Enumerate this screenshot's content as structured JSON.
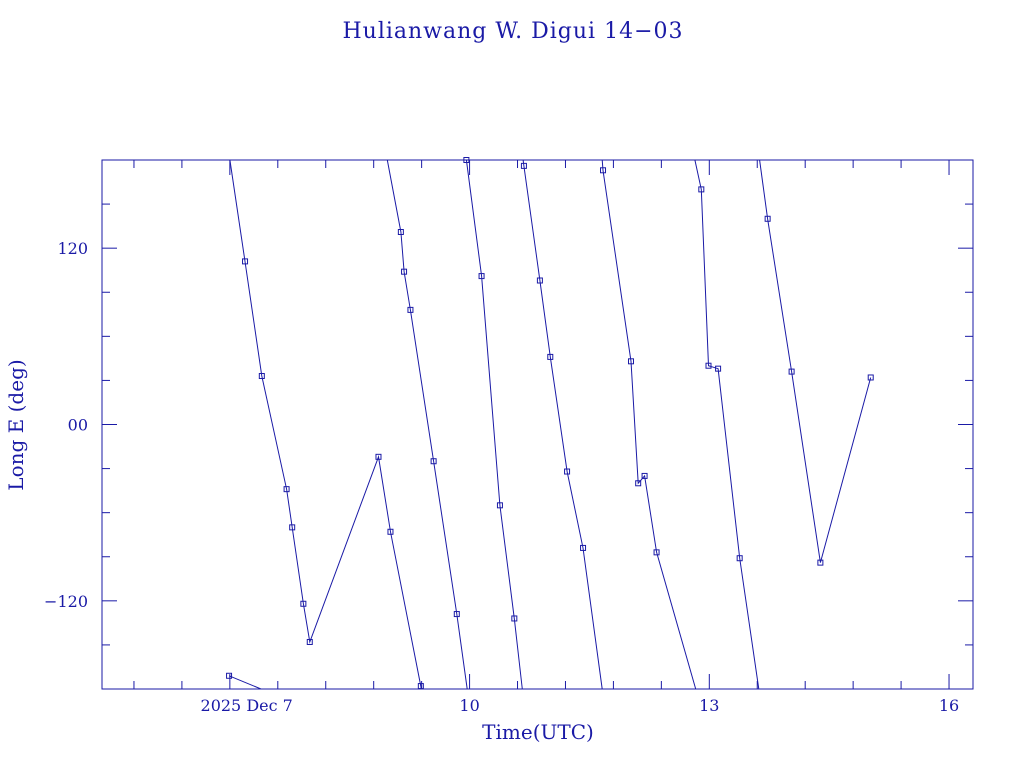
{
  "chart_data": {
    "type": "line",
    "title": "Hulianwang W. Digui 14−03",
    "xlabel": "Time(UTC)",
    "ylabel": "Long E (deg)",
    "xlim": [
      5.4,
      16.3
    ],
    "ylim": [
      -180,
      180
    ],
    "x_ticks": [
      {
        "value": 7,
        "label": "2025 Dec  7"
      },
      {
        "value": 10,
        "label": "10"
      },
      {
        "value": 13,
        "label": "13"
      },
      {
        "value": 16,
        "label": "16"
      }
    ],
    "x_minor_step": 0.6,
    "y_ticks": [
      {
        "value": 120,
        "label": "120"
      },
      {
        "value": 0,
        "label": "00"
      },
      {
        "value": -120,
        "label": "−120"
      }
    ],
    "y_minor_step": 30,
    "grid": false,
    "color": "#1a1aa6",
    "series": [
      {
        "points": [
          {
            "x": 6.99,
            "y": -171
          },
          {
            "x": 7.39,
            "y": -180,
            "marker": false
          }
        ]
      },
      {
        "points": [
          {
            "x": 7.0,
            "y": 180,
            "marker": false
          },
          {
            "x": 7.19,
            "y": 111
          },
          {
            "x": 7.4,
            "y": 33
          },
          {
            "x": 7.71,
            "y": -44
          },
          {
            "x": 7.78,
            "y": -70
          },
          {
            "x": 7.92,
            "y": -122
          },
          {
            "x": 8.0,
            "y": -148
          },
          {
            "x": 8.86,
            "y": -22
          },
          {
            "x": 9.01,
            "y": -73
          },
          {
            "x": 9.39,
            "y": -178
          },
          {
            "x": 9.395,
            "y": -180,
            "marker": false
          }
        ]
      },
      {
        "points": [
          {
            "x": 8.97,
            "y": 180,
            "marker": false
          },
          {
            "x": 9.14,
            "y": 131
          },
          {
            "x": 9.18,
            "y": 104
          },
          {
            "x": 9.26,
            "y": 78
          },
          {
            "x": 9.55,
            "y": -25
          },
          {
            "x": 9.84,
            "y": -129
          },
          {
            "x": 9.97,
            "y": -180,
            "marker": false
          }
        ]
      },
      {
        "points": [
          {
            "x": 9.96,
            "y": 180
          },
          {
            "x": 10.15,
            "y": 101
          },
          {
            "x": 10.38,
            "y": -55
          },
          {
            "x": 10.56,
            "y": -132
          },
          {
            "x": 10.66,
            "y": -180,
            "marker": false
          }
        ]
      },
      {
        "points": [
          {
            "x": 10.67,
            "y": 180,
            "marker": false
          },
          {
            "x": 10.68,
            "y": 176
          },
          {
            "x": 10.88,
            "y": 98
          },
          {
            "x": 11.01,
            "y": 46
          },
          {
            "x": 11.22,
            "y": -32
          },
          {
            "x": 11.42,
            "y": -84
          },
          {
            "x": 11.66,
            "y": -180,
            "marker": false
          }
        ]
      },
      {
        "points": [
          {
            "x": 11.66,
            "y": 180,
            "marker": false
          },
          {
            "x": 11.67,
            "y": 173
          },
          {
            "x": 12.02,
            "y": 43
          },
          {
            "x": 12.11,
            "y": -40
          },
          {
            "x": 12.19,
            "y": -35
          },
          {
            "x": 12.34,
            "y": -87
          },
          {
            "x": 12.83,
            "y": -180,
            "marker": false
          }
        ]
      },
      {
        "points": [
          {
            "x": 12.82,
            "y": 180,
            "marker": false
          },
          {
            "x": 12.9,
            "y": 160
          },
          {
            "x": 12.99,
            "y": 40
          },
          {
            "x": 13.11,
            "y": 38
          },
          {
            "x": 13.38,
            "y": -91
          },
          {
            "x": 13.62,
            "y": -180,
            "marker": false
          }
        ]
      },
      {
        "points": [
          {
            "x": 13.63,
            "y": 180,
            "marker": false
          },
          {
            "x": 13.73,
            "y": 140
          },
          {
            "x": 14.03,
            "y": 36
          },
          {
            "x": 14.39,
            "y": -94
          },
          {
            "x": 15.02,
            "y": 32
          }
        ]
      }
    ]
  }
}
